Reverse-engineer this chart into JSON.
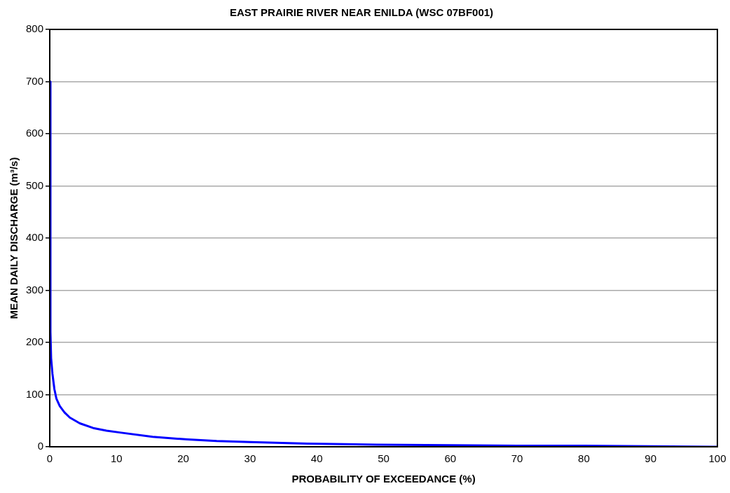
{
  "chart_data": {
    "type": "line",
    "title": "EAST PRAIRIE RIVER NEAR ENILDA (WSC 07BF001)",
    "xlabel": "PROBABILITY OF EXCEEDANCE (%)",
    "ylabel": "MEAN DAILY DISCHARGE (m³/s)",
    "x": [
      0,
      0.1,
      0.2,
      0.4,
      0.7,
      1,
      1.5,
      2.2,
      3,
      4.5,
      6.5,
      8.5,
      10.7,
      15.4,
      20.7,
      25,
      30,
      38.6,
      49,
      60,
      70,
      80,
      90,
      100
    ],
    "series": [
      {
        "color": "#0000ff",
        "values": [
          700,
          220,
          170,
          140,
          110,
          92,
          78,
          66,
          56,
          45,
          36,
          31,
          27,
          19,
          14,
          11,
          9,
          6,
          4,
          3,
          2,
          2,
          1,
          0
        ]
      }
    ],
    "xlim": [
      0,
      100
    ],
    "xticks": [
      0,
      10,
      20,
      30,
      40,
      50,
      60,
      70,
      80,
      90,
      100
    ],
    "ylim": [
      0,
      800
    ],
    "yticks": [
      0,
      100,
      200,
      300,
      400,
      500,
      600,
      700,
      800
    ],
    "grid": "y",
    "legend": false,
    "marker": "none",
    "line_style": "solid"
  }
}
